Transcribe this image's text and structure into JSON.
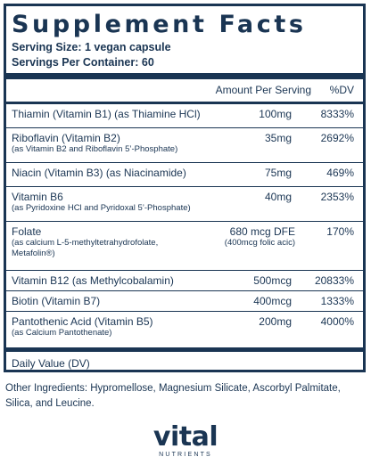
{
  "panel": {
    "title": "Supplement Facts",
    "serving_size": "Serving Size: 1 vegan capsule",
    "servings_per_container": "Servings Per Container: 60",
    "header": {
      "amount_per_serving": "Amount Per Serving",
      "dv": "%DV"
    },
    "nutrients": [
      {
        "name": "Thiamin (Vitamin B1) (as Thiamine HCl)",
        "sub": "",
        "amount": "100mg",
        "amount_sub": "",
        "dv": "8333%"
      },
      {
        "name": "Riboflavin (Vitamin B2)",
        "sub": "(as Vitamin B2 and Riboflavin 5’-Phosphate)",
        "amount": "35mg",
        "amount_sub": "",
        "dv": "2692%"
      },
      {
        "name": "Niacin (Vitamin B3) (as Niacinamide)",
        "sub": "",
        "amount": "75mg",
        "amount_sub": "",
        "dv": "469%"
      },
      {
        "name": "Vitamin B6",
        "sub": "(as Pyridoxine HCl and Pyridoxal 5’-Phosphate)",
        "amount": "40mg",
        "amount_sub": "",
        "dv": "2353%"
      },
      {
        "name": "Folate",
        "sub": "(as calcium L-5-methyltetrahydrofolate,",
        "sub2": "Metafolin®)",
        "amount": "680 mcg  DFE",
        "amount_sub": "(400mcg folic acic)",
        "dv": "170%"
      },
      {
        "name": "Vitamin B12 (as Methylcobalamin)",
        "sub": "",
        "amount": "500mcg",
        "amount_sub": "",
        "dv": "20833%"
      },
      {
        "name": "Biotin (Vitamin B7)",
        "sub": "",
        "amount": "400mcg",
        "amount_sub": "",
        "dv": "1333%"
      },
      {
        "name": "Pantothenic Acid (Vitamin B5)",
        "sub": "(as Calcium Pantothenate)",
        "amount": "200mg",
        "amount_sub": "",
        "dv": "4000%"
      }
    ],
    "footnote": "Daily Value (DV)"
  },
  "other_ingredients": "Other Ingredients: Hypromellose, Magnesium Silicate, Ascorbyl Palmitate, Silica, and Leucine.",
  "logo": {
    "word": "vital",
    "sub": "NUTRIENTS"
  },
  "colors": {
    "ink": "#1a3553",
    "background": "#ffffff"
  }
}
